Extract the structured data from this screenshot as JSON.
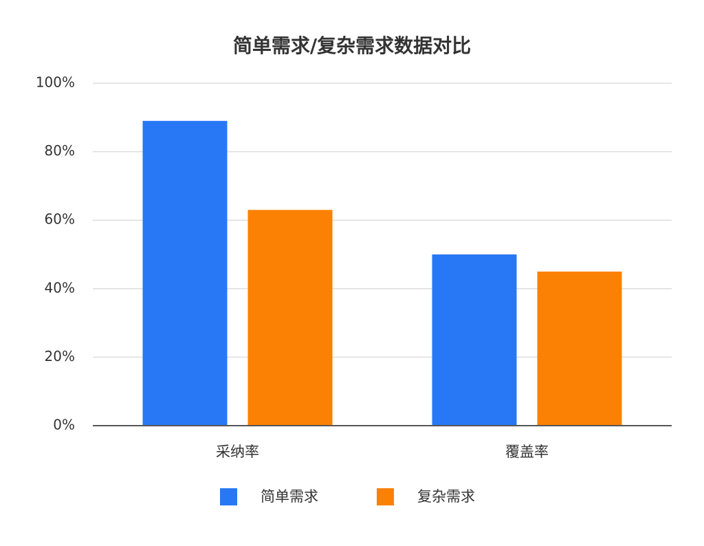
{
  "chart_data": {
    "type": "bar",
    "title": "简单需求/复杂需求数据对比",
    "categories": [
      "采纳率",
      "覆盖率"
    ],
    "series": [
      {
        "name": "简单需求",
        "color": "#2878f5",
        "values": [
          89,
          50
        ]
      },
      {
        "name": "复杂需求",
        "color": "#fb8104",
        "values": [
          63,
          45
        ]
      }
    ],
    "ylim": [
      0,
      100
    ],
    "yticks": [
      {
        "value": 0,
        "label": "0%"
      },
      {
        "value": 20,
        "label": "20%"
      },
      {
        "value": 40,
        "label": "40%"
      },
      {
        "value": 60,
        "label": "60%"
      },
      {
        "value": 80,
        "label": "80%"
      },
      {
        "value": 100,
        "label": "100%"
      }
    ],
    "grid": true,
    "legend": "bottom"
  }
}
